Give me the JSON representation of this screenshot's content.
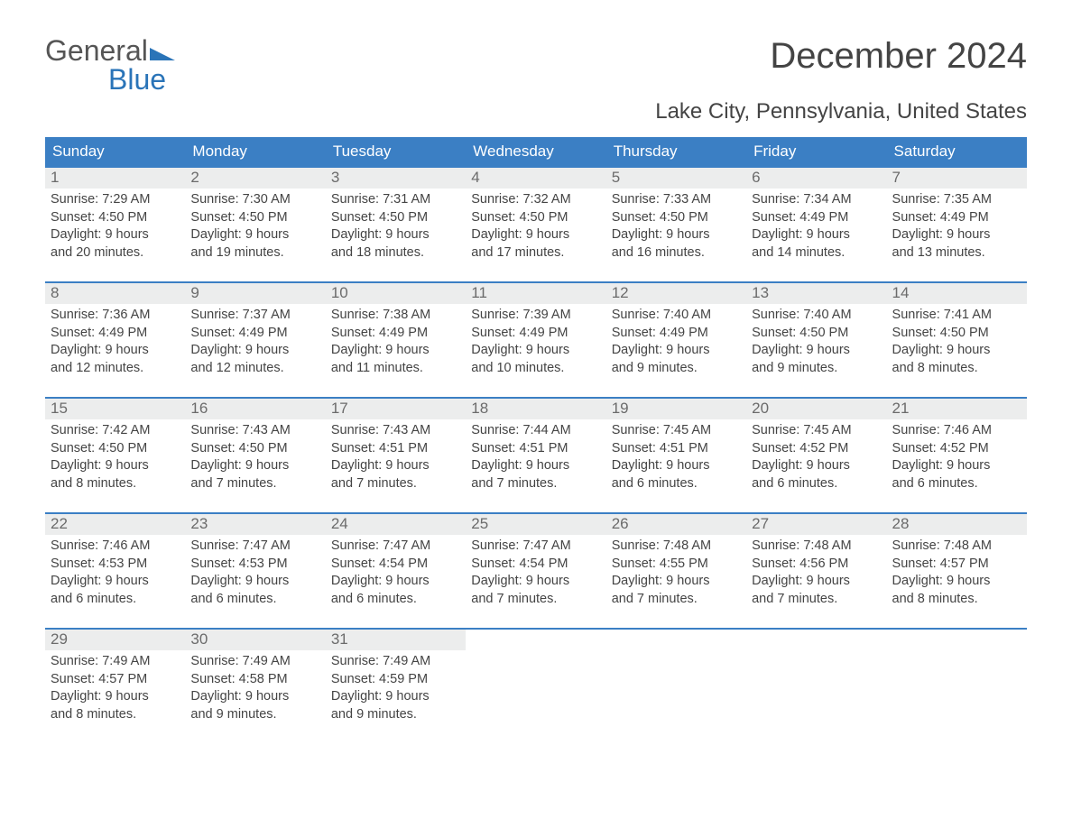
{
  "logo": {
    "word1": "General",
    "word2": "Blue",
    "flag_color": "#2a74b8"
  },
  "title": "December 2024",
  "subtitle": "Lake City, Pennsylvania, United States",
  "colors": {
    "header_blue": "#3b7fc4",
    "daynum_bg": "#eceded",
    "text": "#444444",
    "logo_gray": "#555555",
    "logo_blue": "#2a74b8"
  },
  "day_headers": [
    "Sunday",
    "Monday",
    "Tuesday",
    "Wednesday",
    "Thursday",
    "Friday",
    "Saturday"
  ],
  "labels": {
    "sunrise": "Sunrise:",
    "sunset": "Sunset:",
    "daylight": "Daylight:"
  },
  "weeks": [
    [
      {
        "n": "1",
        "sunrise": "7:29 AM",
        "sunset": "4:50 PM",
        "dl1": "9 hours",
        "dl2": "and 20 minutes."
      },
      {
        "n": "2",
        "sunrise": "7:30 AM",
        "sunset": "4:50 PM",
        "dl1": "9 hours",
        "dl2": "and 19 minutes."
      },
      {
        "n": "3",
        "sunrise": "7:31 AM",
        "sunset": "4:50 PM",
        "dl1": "9 hours",
        "dl2": "and 18 minutes."
      },
      {
        "n": "4",
        "sunrise": "7:32 AM",
        "sunset": "4:50 PM",
        "dl1": "9 hours",
        "dl2": "and 17 minutes."
      },
      {
        "n": "5",
        "sunrise": "7:33 AM",
        "sunset": "4:50 PM",
        "dl1": "9 hours",
        "dl2": "and 16 minutes."
      },
      {
        "n": "6",
        "sunrise": "7:34 AM",
        "sunset": "4:49 PM",
        "dl1": "9 hours",
        "dl2": "and 14 minutes."
      },
      {
        "n": "7",
        "sunrise": "7:35 AM",
        "sunset": "4:49 PM",
        "dl1": "9 hours",
        "dl2": "and 13 minutes."
      }
    ],
    [
      {
        "n": "8",
        "sunrise": "7:36 AM",
        "sunset": "4:49 PM",
        "dl1": "9 hours",
        "dl2": "and 12 minutes."
      },
      {
        "n": "9",
        "sunrise": "7:37 AM",
        "sunset": "4:49 PM",
        "dl1": "9 hours",
        "dl2": "and 12 minutes."
      },
      {
        "n": "10",
        "sunrise": "7:38 AM",
        "sunset": "4:49 PM",
        "dl1": "9 hours",
        "dl2": "and 11 minutes."
      },
      {
        "n": "11",
        "sunrise": "7:39 AM",
        "sunset": "4:49 PM",
        "dl1": "9 hours",
        "dl2": "and 10 minutes."
      },
      {
        "n": "12",
        "sunrise": "7:40 AM",
        "sunset": "4:49 PM",
        "dl1": "9 hours",
        "dl2": "and 9 minutes."
      },
      {
        "n": "13",
        "sunrise": "7:40 AM",
        "sunset": "4:50 PM",
        "dl1": "9 hours",
        "dl2": "and 9 minutes."
      },
      {
        "n": "14",
        "sunrise": "7:41 AM",
        "sunset": "4:50 PM",
        "dl1": "9 hours",
        "dl2": "and 8 minutes."
      }
    ],
    [
      {
        "n": "15",
        "sunrise": "7:42 AM",
        "sunset": "4:50 PM",
        "dl1": "9 hours",
        "dl2": "and 8 minutes."
      },
      {
        "n": "16",
        "sunrise": "7:43 AM",
        "sunset": "4:50 PM",
        "dl1": "9 hours",
        "dl2": "and 7 minutes."
      },
      {
        "n": "17",
        "sunrise": "7:43 AM",
        "sunset": "4:51 PM",
        "dl1": "9 hours",
        "dl2": "and 7 minutes."
      },
      {
        "n": "18",
        "sunrise": "7:44 AM",
        "sunset": "4:51 PM",
        "dl1": "9 hours",
        "dl2": "and 7 minutes."
      },
      {
        "n": "19",
        "sunrise": "7:45 AM",
        "sunset": "4:51 PM",
        "dl1": "9 hours",
        "dl2": "and 6 minutes."
      },
      {
        "n": "20",
        "sunrise": "7:45 AM",
        "sunset": "4:52 PM",
        "dl1": "9 hours",
        "dl2": "and 6 minutes."
      },
      {
        "n": "21",
        "sunrise": "7:46 AM",
        "sunset": "4:52 PM",
        "dl1": "9 hours",
        "dl2": "and 6 minutes."
      }
    ],
    [
      {
        "n": "22",
        "sunrise": "7:46 AM",
        "sunset": "4:53 PM",
        "dl1": "9 hours",
        "dl2": "and 6 minutes."
      },
      {
        "n": "23",
        "sunrise": "7:47 AM",
        "sunset": "4:53 PM",
        "dl1": "9 hours",
        "dl2": "and 6 minutes."
      },
      {
        "n": "24",
        "sunrise": "7:47 AM",
        "sunset": "4:54 PM",
        "dl1": "9 hours",
        "dl2": "and 6 minutes."
      },
      {
        "n": "25",
        "sunrise": "7:47 AM",
        "sunset": "4:54 PM",
        "dl1": "9 hours",
        "dl2": "and 7 minutes."
      },
      {
        "n": "26",
        "sunrise": "7:48 AM",
        "sunset": "4:55 PM",
        "dl1": "9 hours",
        "dl2": "and 7 minutes."
      },
      {
        "n": "27",
        "sunrise": "7:48 AM",
        "sunset": "4:56 PM",
        "dl1": "9 hours",
        "dl2": "and 7 minutes."
      },
      {
        "n": "28",
        "sunrise": "7:48 AM",
        "sunset": "4:57 PM",
        "dl1": "9 hours",
        "dl2": "and 8 minutes."
      }
    ],
    [
      {
        "n": "29",
        "sunrise": "7:49 AM",
        "sunset": "4:57 PM",
        "dl1": "9 hours",
        "dl2": "and 8 minutes."
      },
      {
        "n": "30",
        "sunrise": "7:49 AM",
        "sunset": "4:58 PM",
        "dl1": "9 hours",
        "dl2": "and 9 minutes."
      },
      {
        "n": "31",
        "sunrise": "7:49 AM",
        "sunset": "4:59 PM",
        "dl1": "9 hours",
        "dl2": "and 9 minutes."
      },
      {
        "empty": true
      },
      {
        "empty": true
      },
      {
        "empty": true
      },
      {
        "empty": true
      }
    ]
  ]
}
